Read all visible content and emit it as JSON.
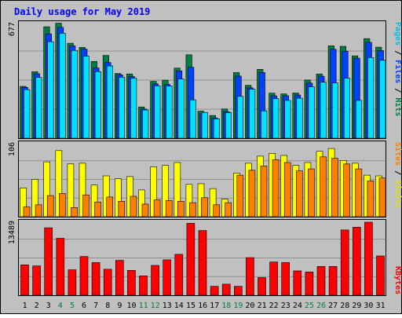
{
  "title": "Daily usage for May 2019",
  "colors": {
    "background": "#c0c0c0",
    "title": "#0000ff",
    "hits": "#008040",
    "files": "#0040ff",
    "pages": "#00e0ff",
    "visits": "#ffff00",
    "sites": "#ff8000",
    "kbytes": "#ff0000",
    "weekend_label": "#008040",
    "day_label": "#000000",
    "gridline": "#808080"
  },
  "chart_data": [
    {
      "type": "bar",
      "panel": "hits-files-pages",
      "categories": [
        "1",
        "2",
        "3",
        "4",
        "5",
        "6",
        "7",
        "8",
        "9",
        "10",
        "11",
        "12",
        "13",
        "14",
        "15",
        "16",
        "17",
        "18",
        "19",
        "20",
        "21",
        "22",
        "23",
        "24",
        "25",
        "26",
        "27",
        "28",
        "29",
        "30",
        "31"
      ],
      "ylim": [
        0,
        677
      ],
      "ytick_label": "677",
      "legend": [
        "Pages",
        "Files",
        "Hits"
      ],
      "series": [
        {
          "name": "Hits",
          "values": [
            302,
            387,
            649,
            670,
            553,
            529,
            447,
            482,
            377,
            374,
            182,
            331,
            338,
            408,
            486,
            158,
            132,
            170,
            382,
            308,
            401,
            262,
            258,
            263,
            339,
            374,
            538,
            535,
            480,
            580,
            530
          ]
        },
        {
          "name": "Files",
          "values": [
            296,
            375,
            608,
            646,
            538,
            519,
            409,
            441,
            369,
            359,
            170,
            316,
            313,
            392,
            413,
            146,
            118,
            155,
            362,
            293,
            383,
            247,
            247,
            251,
            321,
            361,
            518,
            507,
            466,
            558,
            510
          ]
        },
        {
          "name": "Pages",
          "values": [
            283,
            354,
            562,
            611,
            511,
            478,
            388,
            421,
            355,
            350,
            164,
            305,
            304,
            345,
            223,
            150,
            113,
            149,
            244,
            285,
            159,
            230,
            220,
            233,
            299,
            326,
            322,
            350,
            220,
            470,
            454
          ]
        }
      ]
    },
    {
      "type": "bar",
      "panel": "visits-sites",
      "categories": [
        "1",
        "2",
        "3",
        "4",
        "5",
        "6",
        "7",
        "8",
        "9",
        "10",
        "11",
        "12",
        "13",
        "14",
        "15",
        "16",
        "17",
        "18",
        "19",
        "20",
        "21",
        "22",
        "23",
        "24",
        "25",
        "26",
        "27",
        "28",
        "29",
        "30",
        "31"
      ],
      "ylim": [
        0,
        106
      ],
      "ytick_label": "106",
      "legend": [
        "Sites",
        "Visits"
      ],
      "series": [
        {
          "name": "Visits",
          "values": [
            41,
            53,
            78,
            94,
            75,
            76,
            45,
            58,
            54,
            57,
            38,
            71,
            73,
            77,
            46,
            47,
            40,
            25,
            62,
            76,
            86,
            90,
            87,
            73,
            77,
            93,
            97,
            80,
            76,
            59,
            58
          ]
        },
        {
          "name": "Sites",
          "values": [
            14,
            17,
            30,
            33,
            13,
            31,
            21,
            28,
            22,
            29,
            18,
            24,
            23,
            22,
            20,
            27,
            17,
            20,
            59,
            66,
            72,
            81,
            77,
            65,
            68,
            85,
            83,
            75,
            68,
            51,
            55
          ]
        }
      ]
    },
    {
      "type": "bar",
      "panel": "kbytes",
      "categories": [
        "1",
        "2",
        "3",
        "4",
        "5",
        "6",
        "7",
        "8",
        "9",
        "10",
        "11",
        "12",
        "13",
        "14",
        "15",
        "16",
        "17",
        "18",
        "19",
        "20",
        "21",
        "22",
        "23",
        "24",
        "25",
        "26",
        "27",
        "28",
        "29",
        "30",
        "31"
      ],
      "ylim": [
        0,
        13489
      ],
      "ytick_label": "13489",
      "legend": [
        "KBytes"
      ],
      "series": [
        {
          "name": "KBytes",
          "values": [
            5500,
            5300,
            12200,
            10300,
            4600,
            7000,
            5900,
            4700,
            6300,
            4500,
            3500,
            5400,
            6400,
            7400,
            13000,
            11700,
            1600,
            2000,
            1600,
            6800,
            3200,
            6000,
            5900,
            4400,
            4200,
            5200,
            5200,
            11800,
            12300,
            13200,
            7100
          ]
        }
      ]
    }
  ],
  "x_labels": [
    {
      "text": "1",
      "weekend": false
    },
    {
      "text": "2",
      "weekend": false
    },
    {
      "text": "3",
      "weekend": false
    },
    {
      "text": "4",
      "weekend": true
    },
    {
      "text": "5",
      "weekend": true
    },
    {
      "text": "6",
      "weekend": false
    },
    {
      "text": "7",
      "weekend": false
    },
    {
      "text": "8",
      "weekend": false
    },
    {
      "text": "9",
      "weekend": false
    },
    {
      "text": "10",
      "weekend": false
    },
    {
      "text": "11",
      "weekend": true
    },
    {
      "text": "12",
      "weekend": true
    },
    {
      "text": "13",
      "weekend": false
    },
    {
      "text": "14",
      "weekend": false
    },
    {
      "text": "15",
      "weekend": false
    },
    {
      "text": "16",
      "weekend": false
    },
    {
      "text": "17",
      "weekend": false
    },
    {
      "text": "18",
      "weekend": true
    },
    {
      "text": "19",
      "weekend": true
    },
    {
      "text": "20",
      "weekend": false
    },
    {
      "text": "21",
      "weekend": false
    },
    {
      "text": "22",
      "weekend": false
    },
    {
      "text": "23",
      "weekend": false
    },
    {
      "text": "24",
      "weekend": false
    },
    {
      "text": "25",
      "weekend": true
    },
    {
      "text": "26",
      "weekend": true
    },
    {
      "text": "27",
      "weekend": false
    },
    {
      "text": "28",
      "weekend": false
    },
    {
      "text": "29",
      "weekend": false
    },
    {
      "text": "30",
      "weekend": false
    },
    {
      "text": "31",
      "weekend": false
    }
  ]
}
